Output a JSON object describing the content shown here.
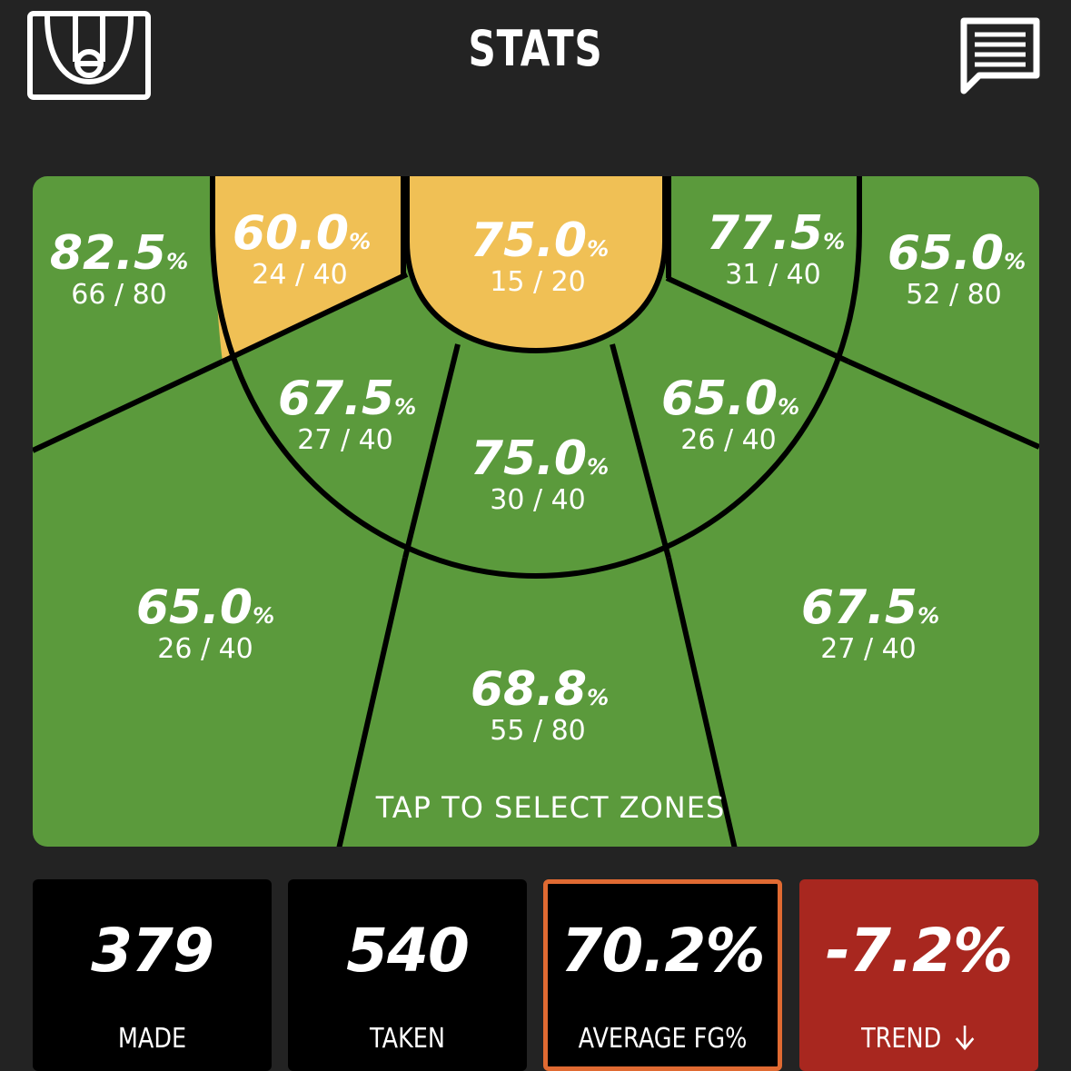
{
  "header": {
    "title": "STATS",
    "left_icon": "half-court-icon",
    "right_icon": "chat-icon"
  },
  "court": {
    "colors": {
      "green": "#5b9a3c",
      "yellow": "#f0c055",
      "lines": "#000000"
    },
    "zones": [
      {
        "id": "left-corner-three",
        "pct": "82.5",
        "frac": "66 / 80",
        "color": "green"
      },
      {
        "id": "left-baseline-mid",
        "pct": "60.0",
        "frac": "24 / 40",
        "color": "yellow"
      },
      {
        "id": "paint",
        "pct": "75.0",
        "frac": "15 / 20",
        "color": "yellow"
      },
      {
        "id": "right-baseline-mid",
        "pct": "77.5",
        "frac": "31 / 40",
        "color": "green"
      },
      {
        "id": "right-corner-three",
        "pct": "65.0",
        "frac": "52 / 80",
        "color": "green"
      },
      {
        "id": "left-elbow-mid",
        "pct": "67.5",
        "frac": "27 / 40",
        "color": "green"
      },
      {
        "id": "top-key-mid",
        "pct": "75.0",
        "frac": "30 / 40",
        "color": "green"
      },
      {
        "id": "right-elbow-mid",
        "pct": "65.0",
        "frac": "26 / 40",
        "color": "green"
      },
      {
        "id": "left-wing-three",
        "pct": "65.0",
        "frac": "26 / 40",
        "color": "green"
      },
      {
        "id": "top-three",
        "pct": "68.8",
        "frac": "55 / 80",
        "color": "green"
      },
      {
        "id": "right-wing-three",
        "pct": "67.5",
        "frac": "27 / 40",
        "color": "green"
      }
    ],
    "percent_sign": "%",
    "hint": "TAP TO SELECT ZONES"
  },
  "stats": {
    "made": {
      "value": "379",
      "label": "MADE"
    },
    "taken": {
      "value": "540",
      "label": "TAKEN"
    },
    "average": {
      "value": "70.2%",
      "label": "AVERAGE FG%",
      "border_color": "#e06a32"
    },
    "trend": {
      "value": "-7.2%",
      "label": "TREND",
      "icon": "arrow-down-icon",
      "background": "#a8271f"
    }
  }
}
